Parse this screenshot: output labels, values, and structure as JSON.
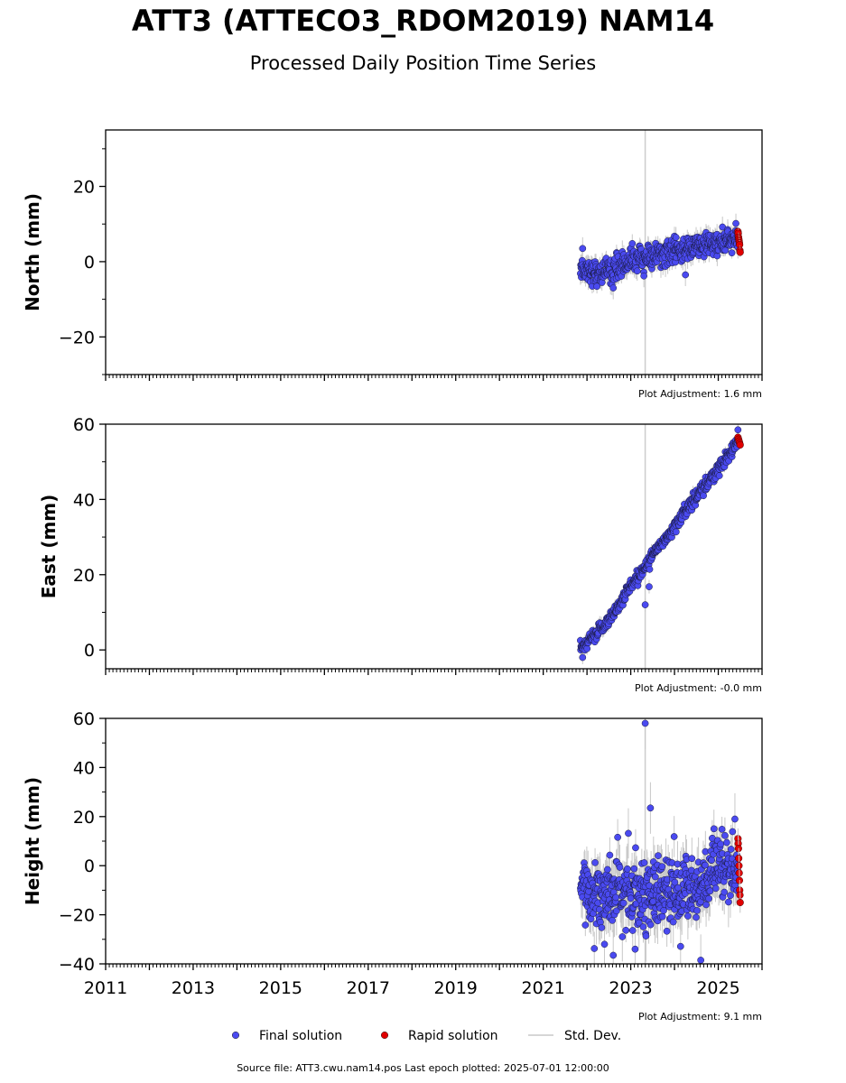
{
  "title": "ATT3 (ATTECO3_RDOM2019) NAM14",
  "subtitle": "Processed Daily Position Time Series",
  "footer": "Source file: ATT3.cwu.nam14.pos  Last epoch plotted: 2025-07-01 12:00:00",
  "colors": {
    "final": "#4a4af0",
    "rapid": "#e00000",
    "stddev": "#c8c8c8",
    "vline": "#cccccc"
  },
  "legend": [
    {
      "key": "final",
      "label": "Final solution"
    },
    {
      "key": "rapid",
      "label": "Rapid solution"
    },
    {
      "key": "stddev",
      "label": "Std. Dev."
    }
  ],
  "chart_data": [
    {
      "type": "scatter",
      "ylabel": "North (mm)",
      "ylim": [
        -30,
        35
      ],
      "yticks": [
        -20,
        0,
        20
      ],
      "ytick_labels": [
        "−20",
        "0",
        "20"
      ],
      "xlim": [
        2011.0,
        2026.0
      ],
      "adjustment": "Plot Adjustment: 1.6 mm",
      "vline_x": 2023.33,
      "final_range": [
        2021.85,
        2025.45
      ],
      "rapid_range": [
        2025.45,
        2025.5
      ],
      "trend": {
        "start": -2.5,
        "end": 6.0
      },
      "trend_points": [
        [
          2021.85,
          -1.5
        ],
        [
          2022.2,
          -3.0
        ],
        [
          2022.6,
          -2.2
        ],
        [
          2023.0,
          0.5
        ],
        [
          2023.5,
          1.5
        ],
        [
          2024.0,
          2.5
        ],
        [
          2024.5,
          4.0
        ],
        [
          2025.0,
          5.0
        ],
        [
          2025.45,
          6.0
        ]
      ],
      "noise": 1.6,
      "err": 2.0,
      "outliers": [
        [
          2023.3,
          -3.8
        ],
        [
          2022.6,
          -7.0
        ],
        [
          2024.25,
          -3.5
        ],
        [
          2021.9,
          3.5
        ]
      ],
      "rapid_values": [
        8.0,
        7.5,
        6.5,
        6.0,
        5.5,
        5.0,
        4.5,
        3.0,
        2.5
      ],
      "show_xlabels": false
    },
    {
      "type": "scatter",
      "ylabel": "East (mm)",
      "ylim": [
        -5,
        60
      ],
      "yticks": [
        0,
        20,
        40,
        60
      ],
      "ytick_labels": [
        "0",
        "20",
        "40",
        "60"
      ],
      "xlim": [
        2011.0,
        2026.0
      ],
      "adjustment": "Plot Adjustment: -0.0 mm",
      "vline_x": 2023.33,
      "final_range": [
        2021.85,
        2025.45
      ],
      "rapid_range": [
        2025.45,
        2025.5
      ],
      "trend_points": [
        [
          2021.85,
          0.0
        ],
        [
          2022.5,
          8.0
        ],
        [
          2023.0,
          17.0
        ],
        [
          2023.5,
          25.0
        ],
        [
          2024.0,
          33.0
        ],
        [
          2024.5,
          41.0
        ],
        [
          2025.0,
          48.0
        ],
        [
          2025.45,
          55.0
        ]
      ],
      "noise": 0.9,
      "err": 1.2,
      "outliers": [
        [
          2023.33,
          12.0
        ],
        [
          2023.42,
          16.8
        ],
        [
          2021.9,
          -2.0
        ],
        [
          2025.45,
          58.5
        ]
      ],
      "rapid_values": [
        56.5,
        56.0,
        55.5,
        55.0,
        54.5
      ],
      "show_xlabels": false
    },
    {
      "type": "scatter",
      "ylabel": "Height (mm)",
      "ylim": [
        -40,
        60
      ],
      "yticks": [
        -40,
        -20,
        0,
        20,
        40,
        60
      ],
      "ytick_labels": [
        "−40",
        "−20",
        "0",
        "20",
        "40",
        "60"
      ],
      "xlim": [
        2011.0,
        2026.0
      ],
      "adjustment": "Plot Adjustment: 9.1 mm",
      "vline_x": 2023.33,
      "final_range": [
        2021.85,
        2025.45
      ],
      "rapid_range": [
        2025.45,
        2025.5
      ],
      "trend_points": [
        [
          2021.85,
          -9.0
        ],
        [
          2022.5,
          -12.0
        ],
        [
          2023.0,
          -10.0
        ],
        [
          2023.5,
          -11.0
        ],
        [
          2024.0,
          -12.0
        ],
        [
          2024.5,
          -8.0
        ],
        [
          2025.0,
          -3.0
        ],
        [
          2025.45,
          -2.0
        ]
      ],
      "noise": 7.0,
      "err": 7.0,
      "outliers": [
        [
          2023.33,
          58.0
        ],
        [
          2023.45,
          23.5
        ],
        [
          2025.38,
          19.0
        ],
        [
          2024.6,
          -38.5
        ],
        [
          2022.4,
          -32.0
        ],
        [
          2022.6,
          -36.5
        ],
        [
          2023.1,
          -34.0
        ]
      ],
      "rapid_values": [
        11.0,
        9.0,
        7.0,
        3.0,
        0.0,
        -3.0,
        -6.0,
        -10.0,
        -12.0,
        -15.0
      ],
      "xticks": [
        2011,
        2013,
        2015,
        2017,
        2019,
        2021,
        2023,
        2025
      ],
      "xtick_labels": [
        "2011",
        "2013",
        "2015",
        "2017",
        "2019",
        "2021",
        "2023",
        "2025"
      ],
      "show_xlabels": true
    }
  ]
}
